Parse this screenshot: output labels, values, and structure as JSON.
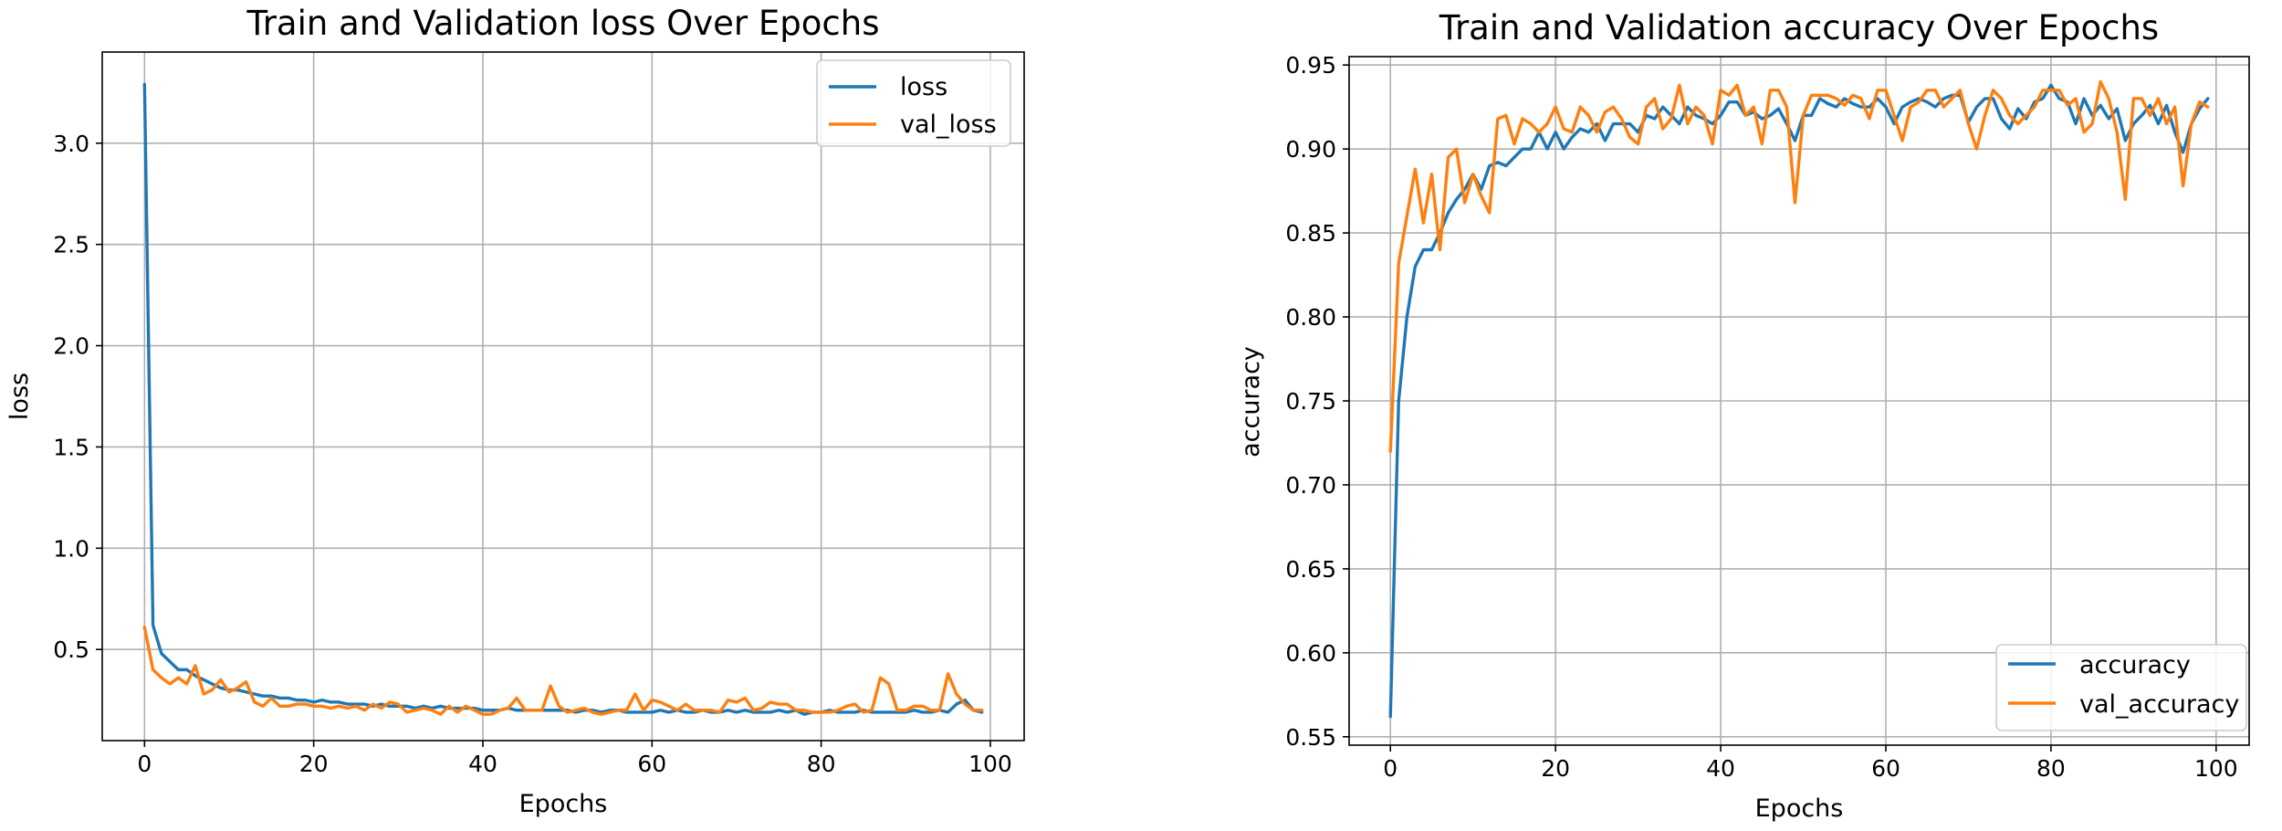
{
  "colors": {
    "series1": "#1f77b4",
    "series2": "#ff7f0e",
    "grid": "#b0b0b0"
  },
  "chart_data": [
    {
      "type": "line",
      "title": "Train and Validation loss Over Epochs",
      "xlabel": "Epochs",
      "ylabel": "loss",
      "xlim": [
        -5,
        104
      ],
      "ylim": [
        0.05,
        3.45
      ],
      "xticks": [
        0,
        20,
        40,
        60,
        80,
        100
      ],
      "yticks": [
        0.5,
        1.0,
        1.5,
        2.0,
        2.5,
        3.0
      ],
      "ytick_labels": [
        "0.5",
        "1.0",
        "1.5",
        "2.0",
        "2.5",
        "3.0"
      ],
      "grid": true,
      "legend_position": "upper right",
      "series": [
        {
          "name": "loss",
          "color": "#1f77b4",
          "values": [
            3.29,
            0.62,
            0.48,
            0.44,
            0.4,
            0.4,
            0.37,
            0.35,
            0.33,
            0.31,
            0.3,
            0.3,
            0.29,
            0.28,
            0.27,
            0.27,
            0.26,
            0.26,
            0.25,
            0.25,
            0.24,
            0.25,
            0.24,
            0.24,
            0.23,
            0.23,
            0.23,
            0.22,
            0.23,
            0.22,
            0.22,
            0.22,
            0.21,
            0.22,
            0.21,
            0.22,
            0.21,
            0.21,
            0.21,
            0.21,
            0.2,
            0.2,
            0.2,
            0.21,
            0.2,
            0.2,
            0.2,
            0.2,
            0.2,
            0.2,
            0.2,
            0.19,
            0.2,
            0.2,
            0.19,
            0.2,
            0.2,
            0.19,
            0.19,
            0.19,
            0.19,
            0.2,
            0.19,
            0.2,
            0.19,
            0.19,
            0.2,
            0.19,
            0.19,
            0.2,
            0.19,
            0.2,
            0.19,
            0.19,
            0.19,
            0.2,
            0.19,
            0.2,
            0.18,
            0.19,
            0.19,
            0.2,
            0.19,
            0.19,
            0.19,
            0.2,
            0.19,
            0.19,
            0.19,
            0.19,
            0.19,
            0.2,
            0.19,
            0.19,
            0.2,
            0.19,
            0.23,
            0.25,
            0.2,
            0.19
          ]
        },
        {
          "name": "val_loss",
          "color": "#ff7f0e",
          "values": [
            0.61,
            0.4,
            0.36,
            0.33,
            0.36,
            0.33,
            0.42,
            0.28,
            0.3,
            0.35,
            0.29,
            0.31,
            0.34,
            0.24,
            0.22,
            0.26,
            0.22,
            0.22,
            0.23,
            0.23,
            0.22,
            0.22,
            0.21,
            0.22,
            0.21,
            0.22,
            0.2,
            0.23,
            0.21,
            0.24,
            0.23,
            0.19,
            0.2,
            0.21,
            0.2,
            0.18,
            0.22,
            0.19,
            0.22,
            0.2,
            0.18,
            0.18,
            0.2,
            0.21,
            0.26,
            0.2,
            0.2,
            0.2,
            0.32,
            0.22,
            0.19,
            0.2,
            0.21,
            0.19,
            0.18,
            0.19,
            0.2,
            0.2,
            0.28,
            0.2,
            0.25,
            0.24,
            0.22,
            0.2,
            0.23,
            0.2,
            0.2,
            0.2,
            0.19,
            0.25,
            0.24,
            0.26,
            0.2,
            0.21,
            0.24,
            0.23,
            0.23,
            0.2,
            0.2,
            0.19,
            0.19,
            0.19,
            0.2,
            0.22,
            0.23,
            0.19,
            0.2,
            0.36,
            0.33,
            0.2,
            0.2,
            0.22,
            0.22,
            0.2,
            0.2,
            0.38,
            0.28,
            0.23,
            0.2,
            0.2
          ]
        }
      ]
    },
    {
      "type": "line",
      "title": "Train and Validation accuracy Over Epochs",
      "xlabel": "Epochs",
      "ylabel": "accuracy",
      "xlim": [
        -5,
        104
      ],
      "ylim": [
        0.545,
        0.955
      ],
      "xticks": [
        0,
        20,
        40,
        60,
        80,
        100
      ],
      "yticks": [
        0.55,
        0.6,
        0.65,
        0.7,
        0.75,
        0.8,
        0.85,
        0.9,
        0.95
      ],
      "ytick_labels": [
        "0.55",
        "0.60",
        "0.65",
        "0.70",
        "0.75",
        "0.80",
        "0.85",
        "0.90",
        "0.95"
      ],
      "grid": true,
      "legend_position": "lower right",
      "series": [
        {
          "name": "accuracy",
          "color": "#1f77b4",
          "values": [
            0.562,
            0.75,
            0.8,
            0.83,
            0.84,
            0.84,
            0.85,
            0.862,
            0.87,
            0.876,
            0.885,
            0.876,
            0.89,
            0.892,
            0.89,
            0.895,
            0.9,
            0.9,
            0.91,
            0.9,
            0.91,
            0.9,
            0.907,
            0.912,
            0.91,
            0.915,
            0.905,
            0.915,
            0.915,
            0.915,
            0.91,
            0.92,
            0.918,
            0.925,
            0.92,
            0.915,
            0.925,
            0.92,
            0.918,
            0.915,
            0.92,
            0.928,
            0.928,
            0.92,
            0.922,
            0.918,
            0.92,
            0.924,
            0.915,
            0.905,
            0.92,
            0.92,
            0.93,
            0.927,
            0.925,
            0.93,
            0.927,
            0.925,
            0.925,
            0.93,
            0.925,
            0.915,
            0.925,
            0.928,
            0.93,
            0.928,
            0.925,
            0.93,
            0.932,
            0.932,
            0.916,
            0.925,
            0.93,
            0.93,
            0.918,
            0.912,
            0.924,
            0.918,
            0.928,
            0.93,
            0.938,
            0.93,
            0.928,
            0.915,
            0.93,
            0.92,
            0.926,
            0.918,
            0.924,
            0.905,
            0.915,
            0.92,
            0.926,
            0.915,
            0.926,
            0.91,
            0.898,
            0.915,
            0.924,
            0.93
          ]
        },
        {
          "name": "val_accuracy",
          "color": "#ff7f0e",
          "values": [
            0.72,
            0.832,
            0.86,
            0.888,
            0.856,
            0.885,
            0.84,
            0.895,
            0.9,
            0.868,
            0.885,
            0.872,
            0.862,
            0.918,
            0.92,
            0.903,
            0.918,
            0.915,
            0.91,
            0.915,
            0.925,
            0.912,
            0.91,
            0.925,
            0.92,
            0.91,
            0.922,
            0.925,
            0.918,
            0.907,
            0.903,
            0.925,
            0.93,
            0.912,
            0.918,
            0.938,
            0.915,
            0.925,
            0.92,
            0.903,
            0.935,
            0.932,
            0.938,
            0.92,
            0.925,
            0.903,
            0.935,
            0.935,
            0.925,
            0.868,
            0.92,
            0.932,
            0.932,
            0.932,
            0.93,
            0.926,
            0.932,
            0.93,
            0.918,
            0.935,
            0.935,
            0.92,
            0.905,
            0.925,
            0.928,
            0.935,
            0.935,
            0.925,
            0.93,
            0.935,
            0.915,
            0.9,
            0.92,
            0.935,
            0.93,
            0.92,
            0.915,
            0.92,
            0.925,
            0.935,
            0.935,
            0.935,
            0.926,
            0.93,
            0.91,
            0.915,
            0.94,
            0.93,
            0.91,
            0.87,
            0.93,
            0.93,
            0.92,
            0.93,
            0.915,
            0.925,
            0.878,
            0.915,
            0.928,
            0.925
          ]
        }
      ]
    }
  ]
}
